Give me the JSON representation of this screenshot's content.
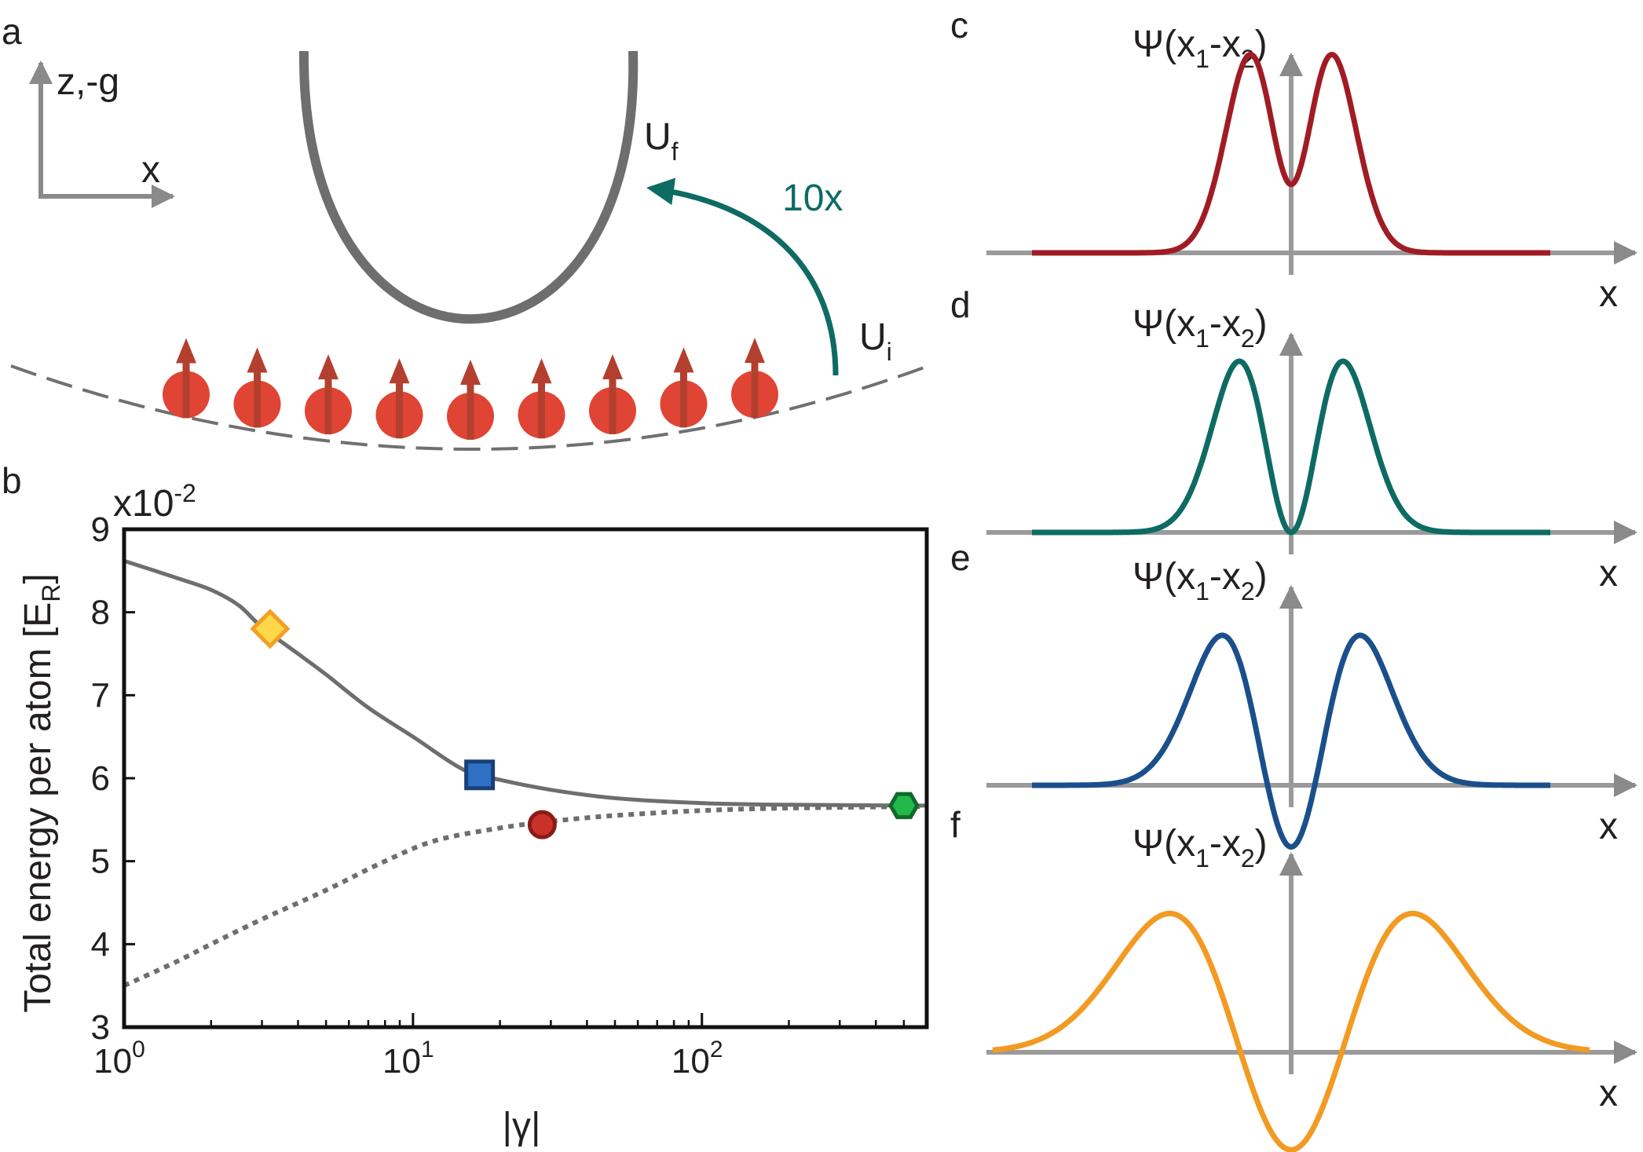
{
  "panel_labels": {
    "a": "a",
    "b": "b",
    "c": "c",
    "d": "d",
    "e": "e",
    "f": "f"
  },
  "colors": {
    "curve_gray": "#6e6e6e",
    "axis_gray": "#9a9a9a",
    "atom_red": "#e04434",
    "spin_arrow": "#b3402f",
    "teal": "#0d6b63",
    "wave_c": "#a01c24",
    "wave_d": "#0d6b63",
    "wave_e": "#1a4f8c",
    "wave_f": "#f29a22",
    "marker_yellow_fill": "#ffd84a",
    "marker_yellow_edge": "#f2a024",
    "marker_blue_fill": "#2f6fc4",
    "marker_blue_edge": "#1a3f78",
    "marker_red_fill": "#c83228",
    "marker_red_edge": "#8a1a18",
    "marker_green_fill": "#22b84a",
    "marker_green_edge": "#0f6a2a"
  },
  "panel_a": {
    "axis_z_label": "z,-g",
    "axis_x_label": "x",
    "uf_base": "U",
    "uf_sub": "f",
    "ui_base": "U",
    "ui_sub": "i",
    "quench_label": "10x",
    "atom_count": 9
  },
  "chart_data": {
    "type": "line",
    "title": "",
    "multiplier_base": "x10",
    "multiplier_exp": "-2",
    "ylabel_main": "Total energy per atom [E",
    "ylabel_sub": "R",
    "ylabel_close": "]",
    "xlabel": "|γ|",
    "xscale": "log",
    "xlim": [
      1,
      600
    ],
    "ylim": [
      3,
      9
    ],
    "yticks": [
      "3",
      "4",
      "5",
      "6",
      "7",
      "8",
      "9"
    ],
    "xticks": [
      {
        "base": "10",
        "exp": "0"
      },
      {
        "base": "10",
        "exp": "1"
      },
      {
        "base": "10",
        "exp": "2"
      }
    ],
    "series": [
      {
        "name": "solid",
        "style": "solid",
        "x": [
          1,
          1.5,
          2,
          2.5,
          3,
          4,
          5,
          7,
          10,
          15,
          20,
          30,
          50,
          100,
          200,
          600
        ],
        "y": [
          8.62,
          8.42,
          8.27,
          8.08,
          7.82,
          7.5,
          7.25,
          6.85,
          6.5,
          6.1,
          5.98,
          5.86,
          5.76,
          5.7,
          5.68,
          5.67
        ]
      },
      {
        "name": "dotted",
        "style": "dotted",
        "x": [
          1,
          1.5,
          2,
          3,
          5,
          8,
          12,
          20,
          30,
          50,
          100,
          200,
          600
        ],
        "y": [
          3.5,
          3.78,
          4.0,
          4.3,
          4.65,
          5.0,
          5.25,
          5.4,
          5.48,
          5.55,
          5.61,
          5.64,
          5.66
        ]
      }
    ],
    "markers": [
      {
        "shape": "diamond",
        "x": 3.2,
        "y": 7.8
      },
      {
        "shape": "square",
        "x": 17,
        "y": 6.04
      },
      {
        "shape": "circle",
        "x": 28,
        "y": 5.44
      },
      {
        "shape": "hexagon",
        "x": 500,
        "y": 5.67
      }
    ]
  },
  "wave_panels": [
    {
      "id": "c",
      "ylabel_base": "Ψ(x",
      "ylabel_sub1": "1",
      "ylabel_mid": "-x",
      "ylabel_sub2": "2",
      "ylabel_close": ")",
      "xlabel": "x",
      "type": "cusp",
      "center_frac": 0.4,
      "peak_pos": 0.17
    },
    {
      "id": "d",
      "ylabel_base": "Ψ(x",
      "ylabel_sub1": "1",
      "ylabel_mid": "-x",
      "ylabel_sub2": "2",
      "ylabel_close": ")",
      "xlabel": "x",
      "type": "cusp",
      "center_frac": 0.0,
      "peak_pos": 0.2
    },
    {
      "id": "e",
      "ylabel_base": "Ψ(x",
      "ylabel_sub1": "1",
      "ylabel_mid": "-x",
      "ylabel_sub2": "2",
      "ylabel_close": ")",
      "xlabel": "x",
      "type": "cusp",
      "center_frac": -0.36,
      "peak_pos": 0.25
    },
    {
      "id": "f",
      "ylabel_base": "Ψ(x",
      "ylabel_sub1": "1",
      "ylabel_mid": "-x",
      "ylabel_sub2": "2",
      "ylabel_close": ")",
      "xlabel": "x",
      "type": "smooth",
      "center_frac": -0.57,
      "peak_pos": 0.37
    }
  ]
}
